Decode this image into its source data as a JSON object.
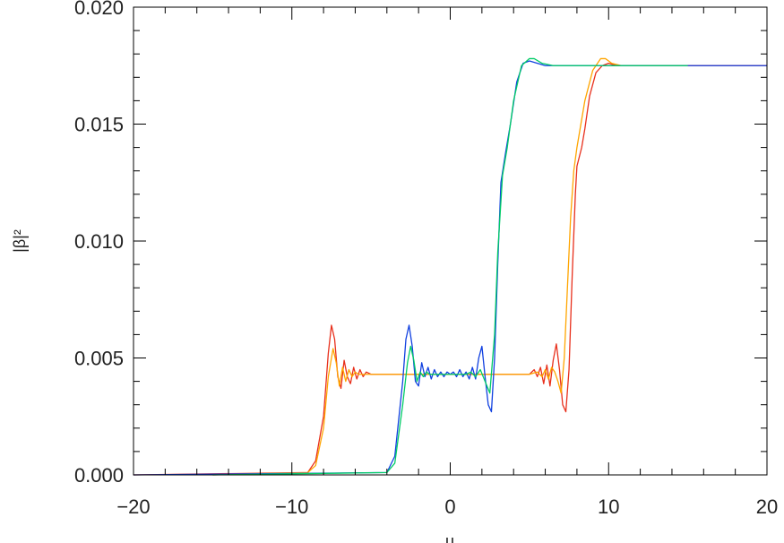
{
  "chart_data": {
    "type": "line",
    "title": "",
    "xlabel": "u",
    "ylabel": "|β|²",
    "xlim": [
      -20,
      20
    ],
    "ylim": [
      0,
      0.02
    ],
    "x_ticks": [
      -20,
      -10,
      0,
      10,
      20
    ],
    "x_tick_labels": [
      "−20",
      "−10",
      "0",
      "10",
      "20"
    ],
    "y_ticks": [
      0,
      0.005,
      0.01,
      0.015,
      0.02
    ],
    "y_tick_labels": [
      "0.000",
      "0.005",
      "0.010",
      "0.015",
      "0.020"
    ],
    "grid": false,
    "legend": "none",
    "series": [
      {
        "color": "#e8301c",
        "x": [
          -20,
          -9.0,
          -8.5,
          -8.0,
          -7.7,
          -7.5,
          -7.3,
          -7.1,
          -6.9,
          -6.7,
          -6.5,
          -6.3,
          -6.1,
          -5.9,
          -5.7,
          -5.5,
          -5.3,
          -5.0,
          0,
          5.0,
          5.3,
          5.5,
          5.7,
          5.9,
          6.1,
          6.3,
          6.5,
          6.7,
          6.9,
          7.1,
          7.3,
          7.5,
          7.7,
          7.9,
          8.0,
          8.3,
          8.5,
          8.8,
          9.2,
          9.6,
          10.0,
          10.5,
          11.0,
          20
        ],
        "y": [
          0,
          0.0001,
          0.0006,
          0.0025,
          0.0052,
          0.0064,
          0.0058,
          0.0042,
          0.0037,
          0.0049,
          0.0042,
          0.0039,
          0.0046,
          0.0041,
          0.0045,
          0.0042,
          0.0044,
          0.0043,
          0.0043,
          0.0043,
          0.0045,
          0.0042,
          0.0046,
          0.0039,
          0.0047,
          0.0038,
          0.0049,
          0.0056,
          0.0045,
          0.003,
          0.0027,
          0.0045,
          0.0085,
          0.012,
          0.0132,
          0.014,
          0.0148,
          0.0162,
          0.0172,
          0.0175,
          0.0176,
          0.0175,
          0.0175,
          0.0175
        ]
      },
      {
        "color": "#ffa500",
        "x": [
          -15,
          -9.0,
          -8.5,
          -8.0,
          -7.7,
          -7.4,
          -7.2,
          -7.0,
          -6.8,
          -6.6,
          -6.4,
          -6.2,
          -6.0,
          -5.8,
          -5.5,
          -5.0,
          0,
          5.0,
          5.5,
          5.8,
          6.0,
          6.2,
          6.4,
          6.6,
          6.8,
          7.0,
          7.2,
          7.4,
          7.6,
          7.8,
          8.0,
          8.5,
          9.0,
          9.5,
          9.8,
          10.2,
          10.8,
          15
        ],
        "y": [
          0,
          0.0001,
          0.0004,
          0.002,
          0.0042,
          0.0054,
          0.0048,
          0.0038,
          0.0046,
          0.004,
          0.0045,
          0.0042,
          0.0044,
          0.0043,
          0.0043,
          0.0043,
          0.0043,
          0.0043,
          0.0044,
          0.0042,
          0.0045,
          0.0041,
          0.0046,
          0.0044,
          0.004,
          0.0035,
          0.005,
          0.008,
          0.011,
          0.013,
          0.014,
          0.016,
          0.0173,
          0.0178,
          0.0178,
          0.0176,
          0.0175,
          0.0175
        ]
      },
      {
        "color": "#1040e0",
        "x": [
          -20,
          -4.0,
          -3.5,
          -3.0,
          -2.8,
          -2.6,
          -2.4,
          -2.2,
          -2.0,
          -1.8,
          -1.6,
          -1.4,
          -1.2,
          -1.0,
          -0.8,
          -0.6,
          -0.4,
          -0.2,
          0,
          0.2,
          0.4,
          0.6,
          0.8,
          1.0,
          1.2,
          1.4,
          1.6,
          1.8,
          2.0,
          2.2,
          2.4,
          2.6,
          2.8,
          3.0,
          3.2,
          3.5,
          3.8,
          4.2,
          4.6,
          5.0,
          5.5,
          6.0,
          7.0,
          20
        ],
        "y": [
          0,
          0.0001,
          0.0008,
          0.004,
          0.0058,
          0.0064,
          0.0055,
          0.004,
          0.0038,
          0.0048,
          0.0042,
          0.0046,
          0.0041,
          0.0045,
          0.0042,
          0.0044,
          0.0042,
          0.0044,
          0.0043,
          0.0044,
          0.0042,
          0.0045,
          0.0042,
          0.0044,
          0.0041,
          0.0046,
          0.0041,
          0.005,
          0.0055,
          0.0042,
          0.003,
          0.0027,
          0.005,
          0.009,
          0.0125,
          0.0138,
          0.015,
          0.0168,
          0.0176,
          0.0177,
          0.0176,
          0.0175,
          0.0175,
          0.0175
        ]
      },
      {
        "color": "#00cc66",
        "x": [
          -15,
          -4.0,
          -3.5,
          -3.0,
          -2.7,
          -2.5,
          -2.3,
          -2.1,
          -1.9,
          -1.7,
          -1.5,
          -1.3,
          -1.0,
          -0.5,
          0,
          0.5,
          1.0,
          1.3,
          1.6,
          1.9,
          2.2,
          2.5,
          2.8,
          3.0,
          3.3,
          3.6,
          4.0,
          4.5,
          5.0,
          5.3,
          5.8,
          6.5,
          15
        ],
        "y": [
          0,
          0.0001,
          0.0005,
          0.003,
          0.0048,
          0.0055,
          0.0049,
          0.004,
          0.0044,
          0.0042,
          0.0044,
          0.0043,
          0.0043,
          0.0043,
          0.0043,
          0.0043,
          0.0043,
          0.0044,
          0.0042,
          0.0045,
          0.004,
          0.0035,
          0.006,
          0.0095,
          0.0128,
          0.014,
          0.016,
          0.0175,
          0.0178,
          0.0178,
          0.0176,
          0.0175,
          0.0175
        ]
      }
    ]
  }
}
